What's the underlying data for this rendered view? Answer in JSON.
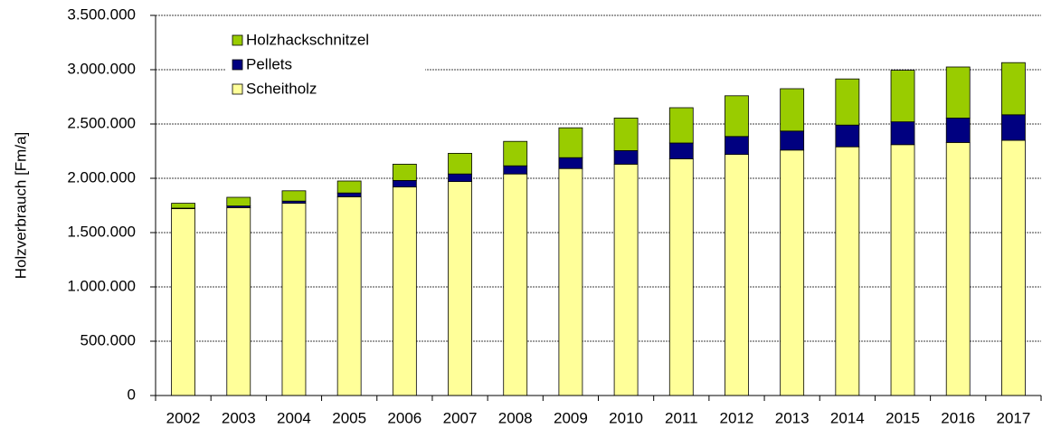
{
  "chart_data": {
    "type": "stacked_bar",
    "y_label": "Holzverbrauch [Fm/a]",
    "categories": [
      "2002",
      "2003",
      "2004",
      "2005",
      "2006",
      "2007",
      "2008",
      "2009",
      "2010",
      "2011",
      "2012",
      "2013",
      "2014",
      "2015",
      "2016",
      "2017"
    ],
    "series": [
      {
        "name": "Scheitholz",
        "color": "#ffff99",
        "values": [
          1720000,
          1730000,
          1770000,
          1830000,
          1920000,
          1970000,
          2040000,
          2090000,
          2130000,
          2180000,
          2220000,
          2260000,
          2290000,
          2310000,
          2330000,
          2350000
        ]
      },
      {
        "name": "Pellets",
        "color": "#000080",
        "values": [
          5000,
          15000,
          20000,
          35000,
          60000,
          70000,
          75000,
          100000,
          125000,
          145000,
          165000,
          175000,
          200000,
          210000,
          225000,
          235000
        ]
      },
      {
        "name": "Holzhackschnitzel",
        "color": "#99cc00",
        "values": [
          45000,
          80000,
          95000,
          110000,
          150000,
          190000,
          225000,
          275000,
          300000,
          325000,
          375000,
          390000,
          425000,
          475000,
          470000,
          480000
        ]
      }
    ],
    "ylim": [
      0,
      3500000
    ],
    "yticks": [
      0,
      {
        "value": 500000,
        "label": "500.000"
      },
      {
        "value": 1000000,
        "label": "1.000.000"
      },
      {
        "value": 1500000,
        "label": "1.500.000"
      },
      {
        "value": 2000000,
        "label": "2.000.000"
      },
      {
        "value": 2500000,
        "label": "2.500.000"
      },
      {
        "value": 3000000,
        "label": "3.000.000"
      },
      {
        "value": 3500000,
        "label": "3.500.000"
      }
    ],
    "grid": true,
    "legend": "upper left"
  }
}
